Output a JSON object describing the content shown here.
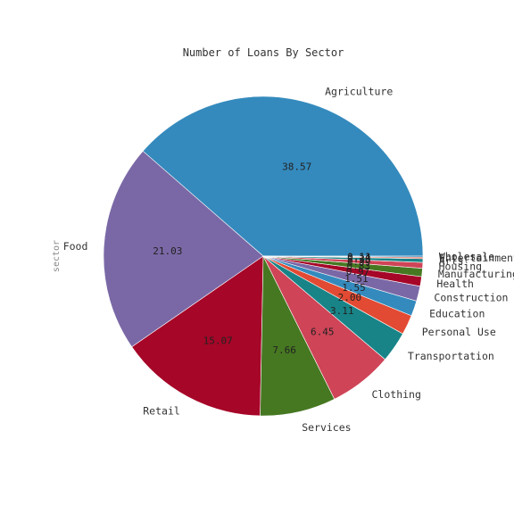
{
  "chart_data": {
    "type": "pie",
    "title": "Number of Loans By Sector",
    "ylabel": "sector",
    "autopct_format": "%.2f",
    "slices": [
      {
        "label": "Agriculture",
        "value": 38.57,
        "color": "#348ABD"
      },
      {
        "label": "Food",
        "value": 21.03,
        "color": "#7A68A6"
      },
      {
        "label": "Retail",
        "value": 15.07,
        "color": "#A60628"
      },
      {
        "label": "Services",
        "value": 7.66,
        "color": "#467821"
      },
      {
        "label": "Clothing",
        "value": 6.45,
        "color": "#CF4457"
      },
      {
        "label": "Transportation",
        "value": 3.11,
        "color": "#188487"
      },
      {
        "label": "Personal Use",
        "value": 2.0,
        "color": "#E24A33"
      },
      {
        "label": "Education",
        "value": 1.55,
        "color": "#348ABD"
      },
      {
        "label": "Construction",
        "value": 1.51,
        "color": "#7A68A6"
      },
      {
        "label": "Health",
        "value": 0.97,
        "color": "#A60628"
      },
      {
        "label": "Manufacturing",
        "value": 0.83,
        "color": "#467821"
      },
      {
        "label": "Housing",
        "value": 0.59,
        "color": "#CF4457"
      },
      {
        "label": "Arts",
        "value": 0.38,
        "color": "#188487"
      },
      {
        "label": "Entertainment",
        "value": 0.14,
        "color": "#E24A33"
      },
      {
        "label": "Wholesale",
        "value": 0.11,
        "color": "#348ABD"
      }
    ]
  }
}
